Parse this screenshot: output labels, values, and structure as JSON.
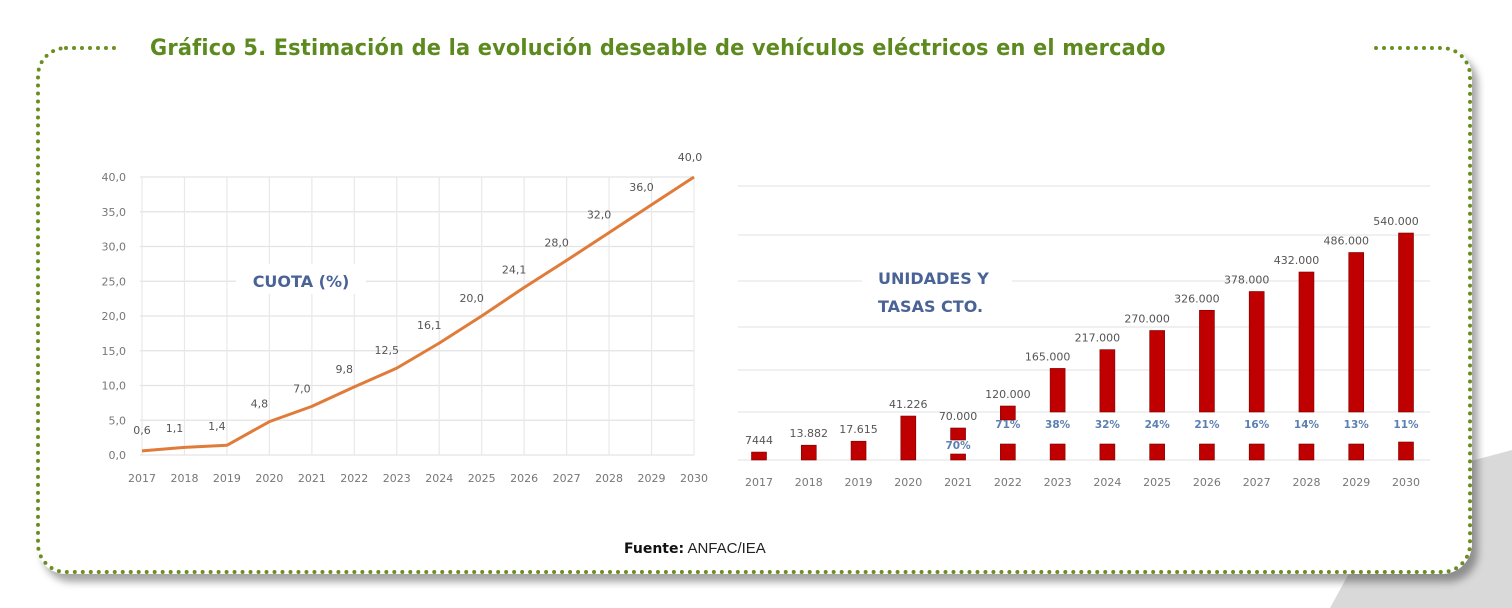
{
  "title": "Gráfico 5. Estimación de la evolución deseable de vehículos eléctricos en el mercado",
  "source": {
    "label": "Fuente:",
    "value": "ANFAC/IEA"
  },
  "colors": {
    "title_green": "#5c8a1e",
    "frame_green": "#6b8e23",
    "line_orange": "#e07b39",
    "bar_red": "#c00000",
    "annotation_blue": "#4a6396",
    "pct_blue": "#5b7fb0",
    "axis_gray": "#777777"
  },
  "chart_data": [
    {
      "type": "line",
      "title": "CUOTA (%)",
      "xlabel": "",
      "ylabel": "",
      "categories": [
        "2017",
        "2018",
        "2019",
        "2020",
        "2021",
        "2022",
        "2023",
        "2024",
        "2025",
        "2026",
        "2027",
        "2028",
        "2029",
        "2030"
      ],
      "values": [
        0.6,
        1.1,
        1.4,
        4.8,
        7.0,
        9.8,
        12.5,
        16.1,
        20.0,
        24.1,
        28.0,
        32.0,
        36.0,
        40.0
      ],
      "value_labels": [
        "0,6",
        "1,1",
        "1,4",
        "4,8",
        "7,0",
        "9,8",
        "12,5",
        "16,1",
        "20,0",
        "24,1",
        "28,0",
        "32,0",
        "36,0",
        "40,0"
      ],
      "ylim": [
        0,
        40
      ],
      "yticks": [
        "0,0",
        "5,0",
        "10,0",
        "15,0",
        "20,0",
        "25,0",
        "30,0",
        "35,0",
        "40,0"
      ],
      "grid": true,
      "legend": "none"
    },
    {
      "type": "bar",
      "title": "UNIDADES Y TASAS CTO.",
      "title_lines": [
        "UNIDADES Y",
        "TASAS CTO."
      ],
      "categories": [
        "2017",
        "2018",
        "2019",
        "2020",
        "2021",
        "2022",
        "2023",
        "2024",
        "2025",
        "2026",
        "2027",
        "2028",
        "2029",
        "2030"
      ],
      "series": [
        {
          "name": "Unidades",
          "values": [
            7444,
            13882,
            17615,
            41226,
            70000,
            120000,
            165000,
            217000,
            270000,
            326000,
            378000,
            432000,
            486000,
            540000
          ],
          "labels": [
            "7444",
            "13.882",
            "17.615",
            "41.226",
            "70.000",
            "120.000",
            "165.000",
            "217.000",
            "270.000",
            "326.000",
            "378.000",
            "432.000",
            "486.000",
            "540.000"
          ]
        },
        {
          "name": "Tasa de crecimiento",
          "values": [
            null,
            null,
            null,
            null,
            70,
            71,
            38,
            32,
            24,
            21,
            16,
            14,
            13,
            11
          ],
          "labels": [
            "",
            "",
            "",
            "",
            "70%",
            "71%",
            "38%",
            "32%",
            "24%",
            "21%",
            "16%",
            "14%",
            "13%",
            "11%"
          ]
        }
      ],
      "ylim": [
        0,
        540000
      ],
      "grid": true,
      "legend": "none"
    }
  ]
}
